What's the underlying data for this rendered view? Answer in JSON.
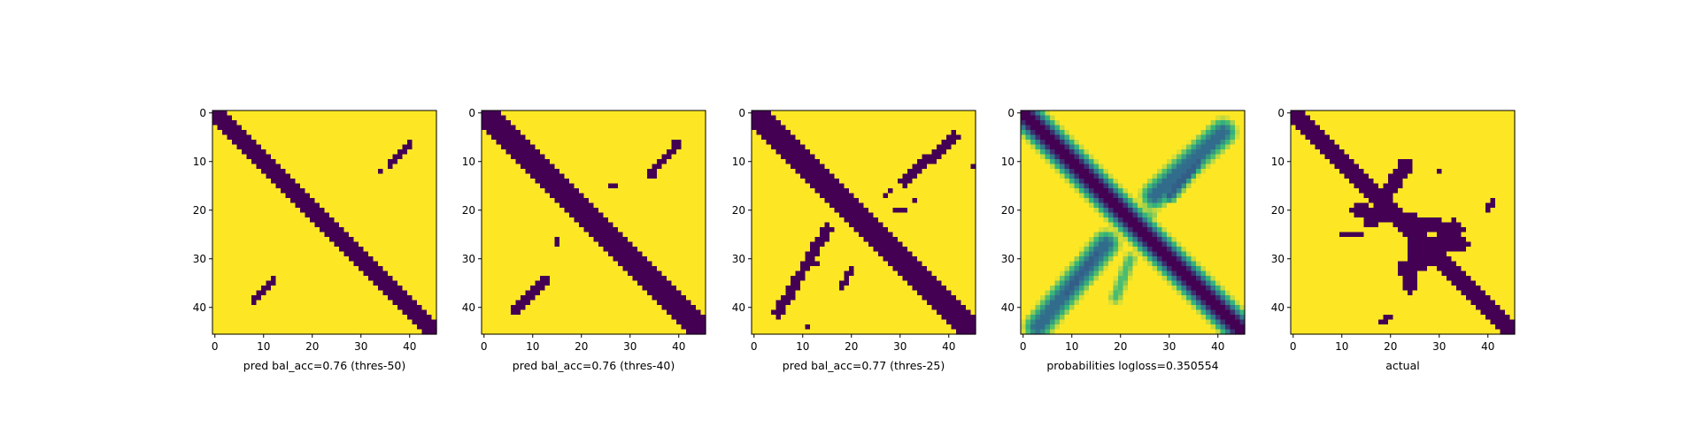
{
  "figure": {
    "colors": {
      "background": "#fde725",
      "foreground": "#440154",
      "colormap": [
        "#440154",
        "#31688e",
        "#35b779",
        "#fde725"
      ]
    }
  },
  "chart_data": [
    {
      "type": "heatmap",
      "title": "pred bal_acc=0.76 (thres-50)",
      "grid_size": 46,
      "xticks": [
        0,
        10,
        20,
        30,
        40
      ],
      "yticks": [
        0,
        10,
        20,
        30,
        40
      ],
      "xlim": [
        -0.5,
        45.5
      ],
      "ylim": [
        45.5,
        -0.5
      ],
      "value_range": [
        0,
        1
      ],
      "diagonal": {
        "from": [
          0,
          0
        ],
        "to": [
          45,
          45
        ],
        "halfwidth": 2.0,
        "value": 0
      },
      "strokes": [
        {
          "from": [
            40,
            6
          ],
          "to": [
            36,
            11
          ],
          "halfwidth": 0.7,
          "value": 0
        },
        {
          "from": [
            34,
            12
          ],
          "to": [
            34,
            12
          ],
          "halfwidth": 0.6,
          "value": 0
        },
        {
          "from": [
            12,
            34
          ],
          "to": [
            8,
            39
          ],
          "halfwidth": 0.7,
          "value": 0
        }
      ]
    },
    {
      "type": "heatmap",
      "title": "pred bal_acc=0.76 (thres-40)",
      "grid_size": 46,
      "xticks": [
        0,
        10,
        20,
        30,
        40
      ],
      "yticks": [
        0,
        10,
        20,
        30,
        40
      ],
      "xlim": [
        -0.5,
        45.5
      ],
      "ylim": [
        45.5,
        -0.5
      ],
      "value_range": [
        0,
        1
      ],
      "diagonal": {
        "from": [
          0,
          0
        ],
        "to": [
          45,
          45
        ],
        "halfwidth": 2.2,
        "value": 0
      },
      "strokes": [
        {
          "from": [
            40,
            6
          ],
          "to": [
            34,
            13
          ],
          "halfwidth": 0.8,
          "value": 0
        },
        {
          "from": [
            27,
            15
          ],
          "to": [
            26,
            15
          ],
          "halfwidth": 0.5,
          "value": 0
        },
        {
          "from": [
            15,
            26
          ],
          "to": [
            15,
            27
          ],
          "halfwidth": 0.5,
          "value": 0
        },
        {
          "from": [
            13,
            34
          ],
          "to": [
            6,
            41
          ],
          "halfwidth": 0.8,
          "value": 0
        }
      ]
    },
    {
      "type": "heatmap",
      "title": "pred bal_acc=0.77 (thres-25)",
      "grid_size": 46,
      "xticks": [
        0,
        10,
        20,
        30,
        40
      ],
      "yticks": [
        0,
        10,
        20,
        30,
        40
      ],
      "xlim": [
        -0.5,
        45.5
      ],
      "ylim": [
        45.5,
        -0.5
      ],
      "value_range": [
        0,
        1
      ],
      "diagonal": {
        "from": [
          0,
          0
        ],
        "to": [
          45,
          45
        ],
        "halfwidth": 2.3,
        "value": 0
      },
      "strokes": [
        {
          "from": [
            41,
            5
          ],
          "to": [
            31,
            14
          ],
          "halfwidth": 1.1,
          "value": 0
        },
        {
          "from": [
            28,
            16
          ],
          "to": [
            27,
            17
          ],
          "halfwidth": 0.5,
          "value": 0
        },
        {
          "from": [
            45,
            11
          ],
          "to": [
            45,
            11
          ],
          "halfwidth": 0.5,
          "value": 0
        },
        {
          "from": [
            33,
            18
          ],
          "to": [
            33,
            18
          ],
          "halfwidth": 0.5,
          "value": 0
        },
        {
          "from": [
            29,
            20
          ],
          "to": [
            31,
            20
          ],
          "halfwidth": 0.5,
          "value": 0
        },
        {
          "from": [
            15,
            24
          ],
          "to": [
            5,
            41
          ],
          "halfwidth": 1.1,
          "value": 0
        },
        {
          "from": [
            13,
            31
          ],
          "to": [
            13,
            31
          ],
          "halfwidth": 0.5,
          "value": 0
        },
        {
          "from": [
            20,
            32
          ],
          "to": [
            18,
            36
          ],
          "halfwidth": 0.5,
          "value": 0
        },
        {
          "from": [
            11,
            44
          ],
          "to": [
            11,
            44
          ],
          "halfwidth": 0.5,
          "value": 0
        }
      ]
    },
    {
      "type": "heatmap",
      "title": "probabilities logloss=0.350554",
      "grid_size": 46,
      "xticks": [
        0,
        10,
        20,
        30,
        40
      ],
      "yticks": [
        0,
        10,
        20,
        30,
        40
      ],
      "xlim": [
        -0.5,
        45.5
      ],
      "ylim": [
        45.5,
        -0.5
      ],
      "value_range": [
        0,
        1
      ],
      "diagonal": {
        "from": [
          0,
          0
        ],
        "to": [
          45,
          45
        ],
        "halfwidth": 3.8,
        "value": 0,
        "soft": true
      },
      "strokes": [
        {
          "from": [
            41,
            4
          ],
          "to": [
            27,
            17
          ],
          "halfwidth": 3.4,
          "value": 0.35,
          "soft": true
        },
        {
          "from": [
            36,
            10
          ],
          "to": [
            30,
            17
          ],
          "halfwidth": 2.0,
          "value": 0.3,
          "soft": true
        },
        {
          "from": [
            26,
            21
          ],
          "to": [
            20,
            22
          ],
          "halfwidth": 2.0,
          "value": 0.75,
          "soft": true
        },
        {
          "from": [
            17,
            27
          ],
          "to": [
            3,
            44
          ],
          "halfwidth": 3.4,
          "value": 0.35,
          "soft": true
        },
        {
          "from": [
            15,
            29
          ],
          "to": [
            9,
            37
          ],
          "halfwidth": 2.0,
          "value": 0.3,
          "soft": true
        },
        {
          "from": [
            22,
            30
          ],
          "to": [
            19,
            38
          ],
          "halfwidth": 1.6,
          "value": 0.7,
          "soft": true
        }
      ]
    },
    {
      "type": "heatmap",
      "title": "actual",
      "grid_size": 46,
      "xticks": [
        0,
        10,
        20,
        30,
        40
      ],
      "yticks": [
        0,
        10,
        20,
        30,
        40
      ],
      "xlim": [
        -0.5,
        45.5
      ],
      "ylim": [
        45.5,
        -0.5
      ],
      "value_range": [
        0,
        1
      ],
      "diagonal": {
        "from": [
          0,
          0
        ],
        "to": [
          45,
          45
        ],
        "halfwidth": 1.9,
        "value": 0
      },
      "strokes": [
        {
          "from": [
            23,
            11
          ],
          "to": [
            16,
            22
          ],
          "halfwidth": 1.5,
          "value": 0
        },
        {
          "from": [
            13,
            20
          ],
          "to": [
            34,
            24
          ],
          "halfwidth": 1.4,
          "value": 0
        },
        {
          "from": [
            25,
            24
          ],
          "to": [
            24,
            36
          ],
          "halfwidth": 1.2,
          "value": 0
        },
        {
          "from": [
            33,
            23
          ],
          "to": [
            23,
            33
          ],
          "halfwidth": 1.3,
          "value": 0
        },
        {
          "from": [
            31,
            27
          ],
          "to": [
            35,
            27
          ],
          "halfwidth": 1.2,
          "value": 0
        },
        {
          "from": [
            28,
            30
          ],
          "to": [
            23,
            32
          ],
          "halfwidth": 1.5,
          "value": 0
        },
        {
          "from": [
            41,
            18
          ],
          "to": [
            40,
            20
          ],
          "halfwidth": 0.8,
          "value": 0
        },
        {
          "from": [
            30,
            12
          ],
          "to": [
            30,
            12
          ],
          "halfwidth": 0.5,
          "value": 0
        },
        {
          "from": [
            20,
            42
          ],
          "to": [
            18,
            43
          ],
          "halfwidth": 0.7,
          "value": 0
        },
        {
          "from": [
            10,
            25
          ],
          "to": [
            14,
            25
          ],
          "halfwidth": 0.8,
          "value": 0
        }
      ]
    }
  ]
}
